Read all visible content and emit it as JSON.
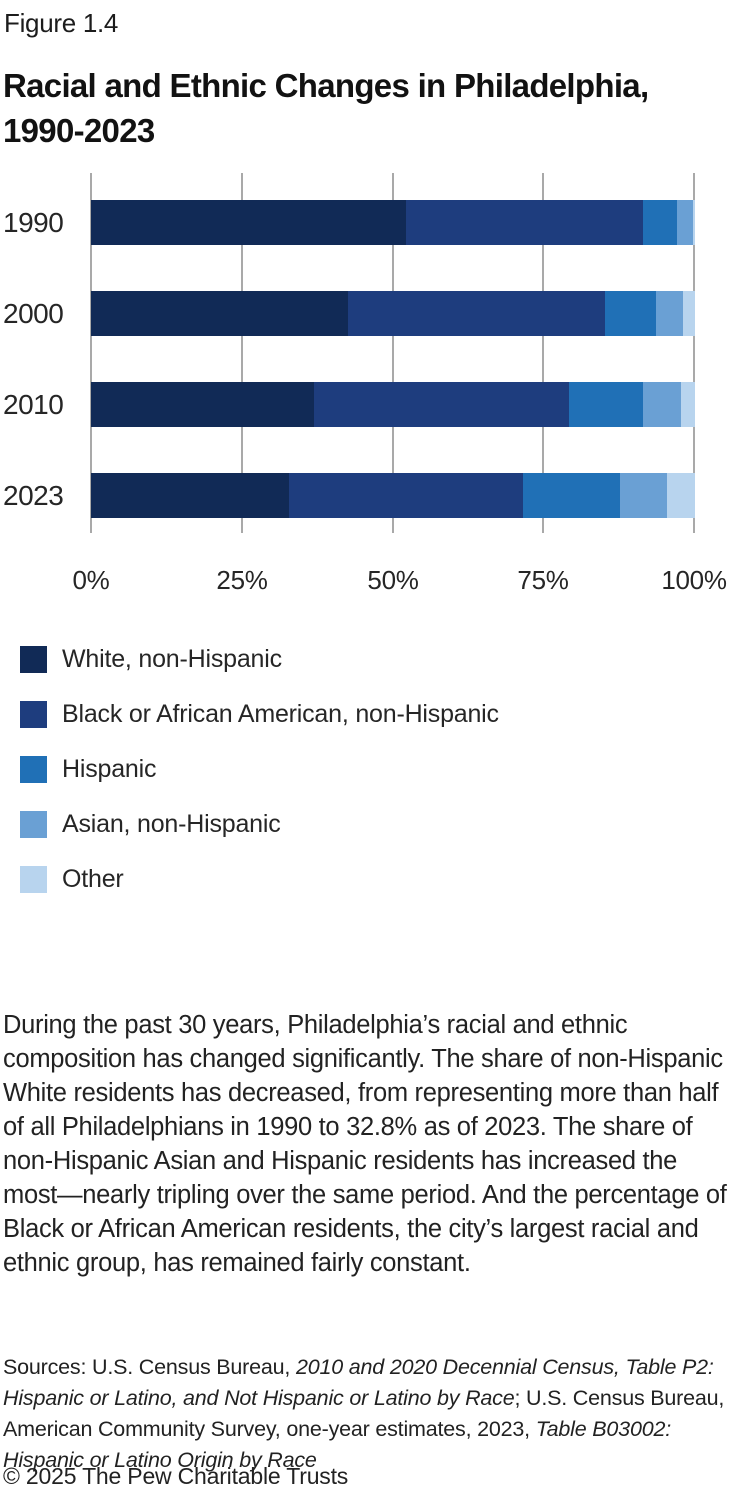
{
  "figure_label": "Figure 1.4",
  "title_lines": [
    "Racial and Ethnic Changes in Philadelphia,",
    "1990-2023"
  ],
  "chart_data": {
    "type": "bar",
    "orientation": "horizontal",
    "stacked": true,
    "unit": "percent",
    "categories": [
      "1990",
      "2000",
      "2010",
      "2023"
    ],
    "series": [
      {
        "name": "White, non-Hispanic",
        "color": "#112a56",
        "values": [
          52.1,
          42.5,
          36.9,
          32.8
        ]
      },
      {
        "name": "Black or African American, non-Hispanic",
        "color": "#1e3d7e",
        "values": [
          39.3,
          42.6,
          42.2,
          38.7
        ]
      },
      {
        "name": "Hispanic",
        "color": "#2070b6",
        "values": [
          5.6,
          8.5,
          12.3,
          16.1
        ]
      },
      {
        "name": "Asian, non-Hispanic",
        "color": "#6aa0d4",
        "values": [
          2.7,
          4.4,
          6.3,
          7.7
        ]
      },
      {
        "name": "Other",
        "color": "#b8d4ee",
        "values": [
          0.3,
          2.0,
          2.3,
          4.7
        ]
      }
    ],
    "x_axis": {
      "tick_labels": [
        "0%",
        "25%",
        "50%",
        "75%",
        "100%"
      ],
      "range": [
        0,
        100
      ]
    },
    "grid": true,
    "gridline_color": "#a9a9a9",
    "legend_position": "below-left"
  },
  "description": "During the past 30 years, Philadelphia’s racial and ethnic composition has changed significantly. The share of non-Hispanic White residents has decreased, from representing more than half of all Philadelphians in 1990 to 32.8% as of 2023. The share of non-Hispanic Asian and Hispanic residents has increased the most—nearly tripling over the same period. And the percentage of Black or African American residents, the city’s largest racial and ethnic group, has remained fairly constant.",
  "sources_segments": [
    {
      "text": "Sources: U.S. Census Bureau, ",
      "italic": false
    },
    {
      "text": "2010 and 2020 Decennial Census, Table P2: Hispanic or Latino, and Not Hispanic or Latino by Race",
      "italic": true
    },
    {
      "text": "; U.S. Census Bureau, American Community Survey, one-year estimates, 2023, ",
      "italic": false
    },
    {
      "text": "Table B03002: Hispanic or Latino Origin by Race",
      "italic": true
    }
  ],
  "footer": "© 2025 The Pew Charitable Trusts"
}
